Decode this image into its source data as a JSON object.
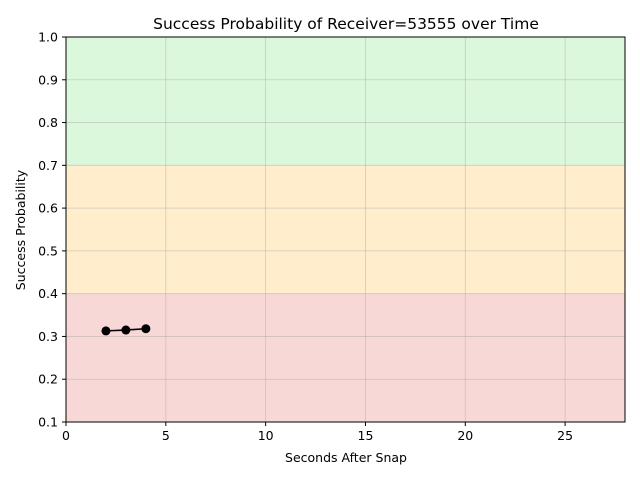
{
  "chart_data": {
    "type": "line",
    "title": "Success Probability of Receiver=53555 over Time",
    "xlabel": "Seconds After Snap",
    "ylabel": "Success Probability",
    "xlim": [
      0,
      28
    ],
    "ylim": [
      0.1,
      1.0
    ],
    "xticks": [
      0,
      5,
      10,
      15,
      20,
      25
    ],
    "yticks": [
      0.1,
      0.2,
      0.3,
      0.4,
      0.5,
      0.6,
      0.7,
      0.8,
      0.9,
      1.0
    ],
    "xtick_labels": [
      "0",
      "5",
      "10",
      "15",
      "20",
      "25"
    ],
    "ytick_labels": [
      "0.1",
      "0.2",
      "0.3",
      "0.4",
      "0.5",
      "0.6",
      "0.7",
      "0.8",
      "0.9",
      "1.0"
    ],
    "grid": true,
    "bands": [
      {
        "from": 0.1,
        "to": 0.4,
        "color": "#f8d7d7"
      },
      {
        "from": 0.4,
        "to": 0.7,
        "color": "#ffedcc"
      },
      {
        "from": 0.7,
        "to": 1.0,
        "color": "#dcf8dc"
      }
    ],
    "series": [
      {
        "color": "#000000",
        "points": [
          {
            "x": 2,
            "y": 0.313
          },
          {
            "x": 3,
            "y": 0.315
          },
          {
            "x": 4,
            "y": 0.318
          }
        ]
      }
    ]
  }
}
